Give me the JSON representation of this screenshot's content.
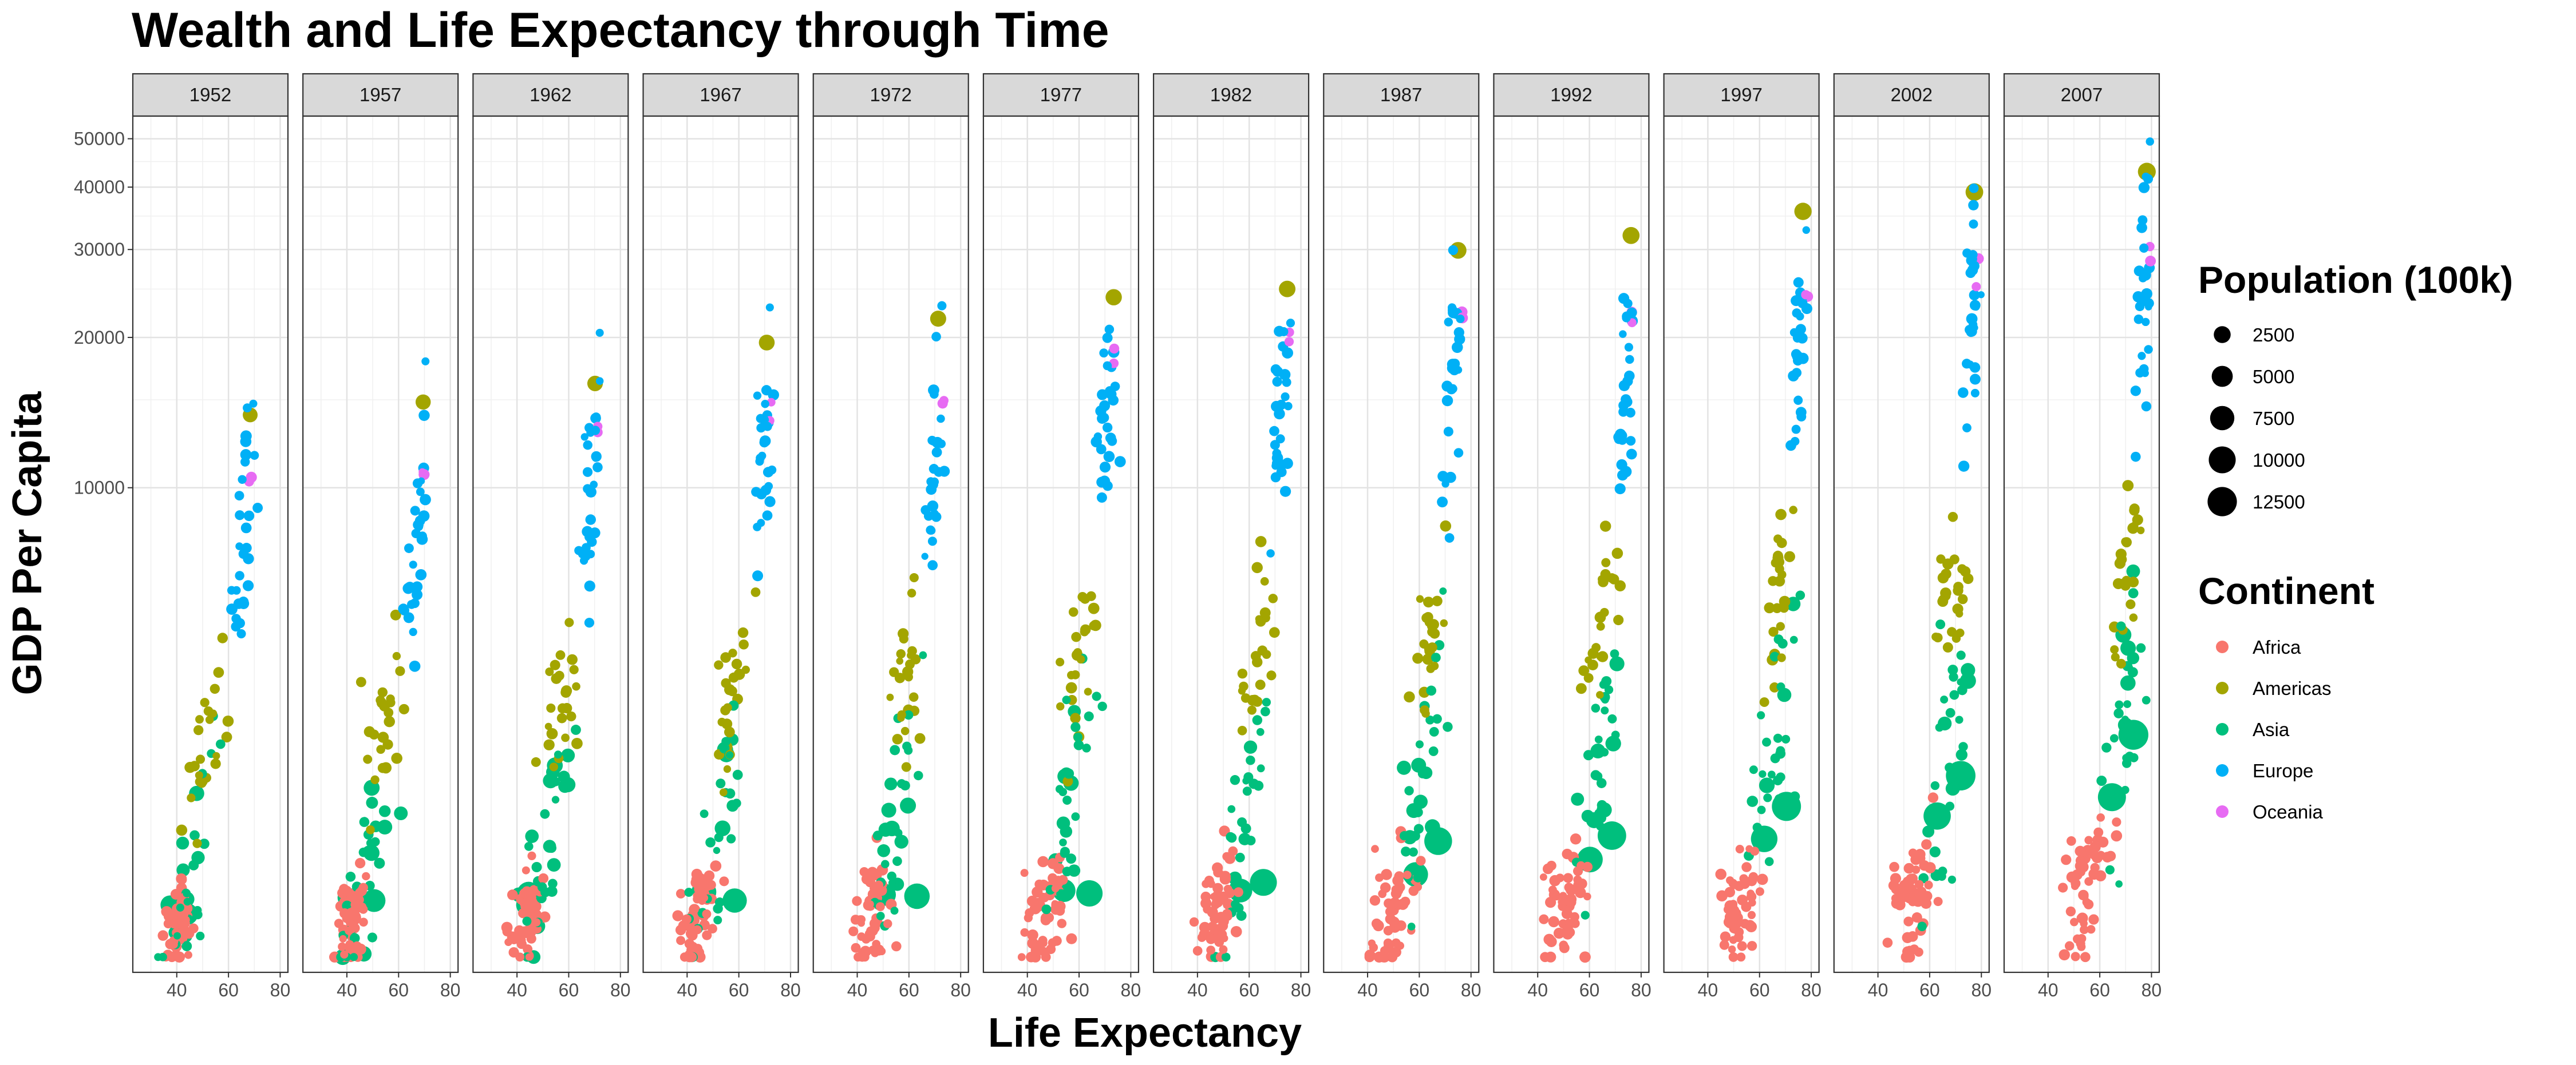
{
  "chart_data": {
    "type": "scatter",
    "title": "Wealth and Life Expectancy through Time",
    "xlabel": "Life Expectancy",
    "ylabel": "GDP Per Capita",
    "y_scale": "log",
    "xlim": [
      23,
      83
    ],
    "ylim": [
      1070,
      55500
    ],
    "x_ticks": [
      40,
      60,
      80
    ],
    "y_ticks": [
      10000,
      20000,
      30000,
      40000,
      50000
    ],
    "grid": true,
    "facets": [
      "1952",
      "1957",
      "1962",
      "1967",
      "1972",
      "1977",
      "1982",
      "1987",
      "1992",
      "1997",
      "2002",
      "2007"
    ],
    "legend_size": {
      "title": "Population (100k)",
      "entries": [
        {
          "label": "2500",
          "value": 2500
        },
        {
          "label": "5000",
          "value": 5000
        },
        {
          "label": "7500",
          "value": 7500
        },
        {
          "label": "10000",
          "value": 10000
        },
        {
          "label": "12500",
          "value": 12500
        }
      ]
    },
    "legend_color": {
      "title": "Continent",
      "entries": [
        {
          "label": "Africa",
          "color": "#F8766D"
        },
        {
          "label": "Americas",
          "color": "#A3A500"
        },
        {
          "label": "Asia",
          "color": "#00BF7D"
        },
        {
          "label": "Europe",
          "color": "#00B0F6"
        },
        {
          "label": "Oceania",
          "color": "#E76BF3"
        }
      ]
    },
    "highlighted_points": [
      {
        "facet": "1952",
        "continent": "Americas",
        "x": 68.4,
        "y": 13990,
        "pop": 1580
      },
      {
        "facet": "1952",
        "continent": "Europe",
        "x": 69.6,
        "y": 14734,
        "pop": 35
      },
      {
        "facet": "1952",
        "continent": "Asia",
        "x": 44,
        "y": 1400,
        "pop": 5500
      },
      {
        "facet": "1952",
        "continent": "Asia",
        "x": 37.4,
        "y": 1460,
        "pop": 3720
      },
      {
        "facet": "1957",
        "continent": "Americas",
        "x": 69.5,
        "y": 14847,
        "pop": 1715
      },
      {
        "facet": "1957",
        "continent": "Europe",
        "x": 70.4,
        "y": 17909,
        "pop": 35
      },
      {
        "facet": "1957",
        "continent": "Asia",
        "x": 50.5,
        "y": 1490,
        "pop": 6370
      },
      {
        "facet": "1957",
        "continent": "Asia",
        "x": 40.2,
        "y": 1510,
        "pop": 4090
      },
      {
        "facet": "1962",
        "continent": "Americas",
        "x": 70.2,
        "y": 16173,
        "pop": 1869
      },
      {
        "facet": "1962",
        "continent": "Europe",
        "x": 72.0,
        "y": 20431,
        "pop": 35
      },
      {
        "facet": "1962",
        "continent": "Asia",
        "x": 44.5,
        "y": 1540,
        "pop": 6660
      },
      {
        "facet": "1962",
        "continent": "Asia",
        "x": 43.6,
        "y": 1460,
        "pop": 4540
      },
      {
        "facet": "1967",
        "continent": "Americas",
        "x": 70.8,
        "y": 19530,
        "pop": 1989
      },
      {
        "facet": "1967",
        "continent": "Europe",
        "x": 72.0,
        "y": 22966,
        "pop": 35
      },
      {
        "facet": "1967",
        "continent": "Asia",
        "x": 58.4,
        "y": 1490,
        "pop": 7540
      },
      {
        "facet": "1967",
        "continent": "Asia",
        "x": 47.2,
        "y": 1550,
        "pop": 5070
      },
      {
        "facet": "1972",
        "continent": "Americas",
        "x": 71.3,
        "y": 21806,
        "pop": 2099
      },
      {
        "facet": "1972",
        "continent": "Asia",
        "x": 63.1,
        "y": 1520,
        "pop": 8620
      },
      {
        "facet": "1972",
        "continent": "Asia",
        "x": 50.7,
        "y": 1530,
        "pop": 5670
      },
      {
        "facet": "1977",
        "continent": "Americas",
        "x": 73.4,
        "y": 24072,
        "pop": 2202
      },
      {
        "facet": "1977",
        "continent": "Asia",
        "x": 64.0,
        "y": 1540,
        "pop": 9430
      },
      {
        "facet": "1977",
        "continent": "Asia",
        "x": 54.2,
        "y": 1560,
        "pop": 6340
      },
      {
        "facet": "1982",
        "continent": "Americas",
        "x": 74.7,
        "y": 25010,
        "pop": 2320
      },
      {
        "facet": "1982",
        "continent": "Asia",
        "x": 65.5,
        "y": 1620,
        "pop": 10000
      },
      {
        "facet": "1982",
        "continent": "Asia",
        "x": 56.6,
        "y": 1560,
        "pop": 7080
      },
      {
        "facet": "1987",
        "continent": "Americas",
        "x": 75.0,
        "y": 29884,
        "pop": 2420
      },
      {
        "facet": "1987",
        "continent": "Asia",
        "x": 67.3,
        "y": 1960,
        "pop": 10840
      },
      {
        "facet": "1987",
        "continent": "Asia",
        "x": 58.6,
        "y": 1680,
        "pop": 7880
      },
      {
        "facet": "1992",
        "continent": "Americas",
        "x": 76.1,
        "y": 32004,
        "pop": 2560
      },
      {
        "facet": "1992",
        "continent": "Asia",
        "x": 68.7,
        "y": 2010,
        "pop": 11640
      },
      {
        "facet": "1992",
        "continent": "Asia",
        "x": 60.2,
        "y": 1800,
        "pop": 8720
      },
      {
        "facet": "1997",
        "continent": "Americas",
        "x": 76.8,
        "y": 35767,
        "pop": 2720
      },
      {
        "facet": "1997",
        "continent": "Asia",
        "x": 70.4,
        "y": 2300,
        "pop": 12300
      },
      {
        "facet": "1997",
        "continent": "Asia",
        "x": 61.8,
        "y": 1980,
        "pop": 9590
      },
      {
        "facet": "2002",
        "continent": "Americas",
        "x": 77.3,
        "y": 39097,
        "pop": 2880
      },
      {
        "facet": "2002",
        "continent": "Asia",
        "x": 72.0,
        "y": 2650,
        "pop": 12800
      },
      {
        "facet": "2002",
        "continent": "Asia",
        "x": 62.9,
        "y": 2200,
        "pop": 10340
      },
      {
        "facet": "2007",
        "continent": "Americas",
        "x": 78.2,
        "y": 42951,
        "pop": 3010
      },
      {
        "facet": "2007",
        "continent": "Europe",
        "x": 79.4,
        "y": 49357,
        "pop": 50
      },
      {
        "facet": "2007",
        "continent": "Asia",
        "x": 73.0,
        "y": 3200,
        "pop": 13200
      },
      {
        "facet": "2007",
        "continent": "Asia",
        "x": 64.7,
        "y": 2400,
        "pop": 11100
      }
    ]
  }
}
